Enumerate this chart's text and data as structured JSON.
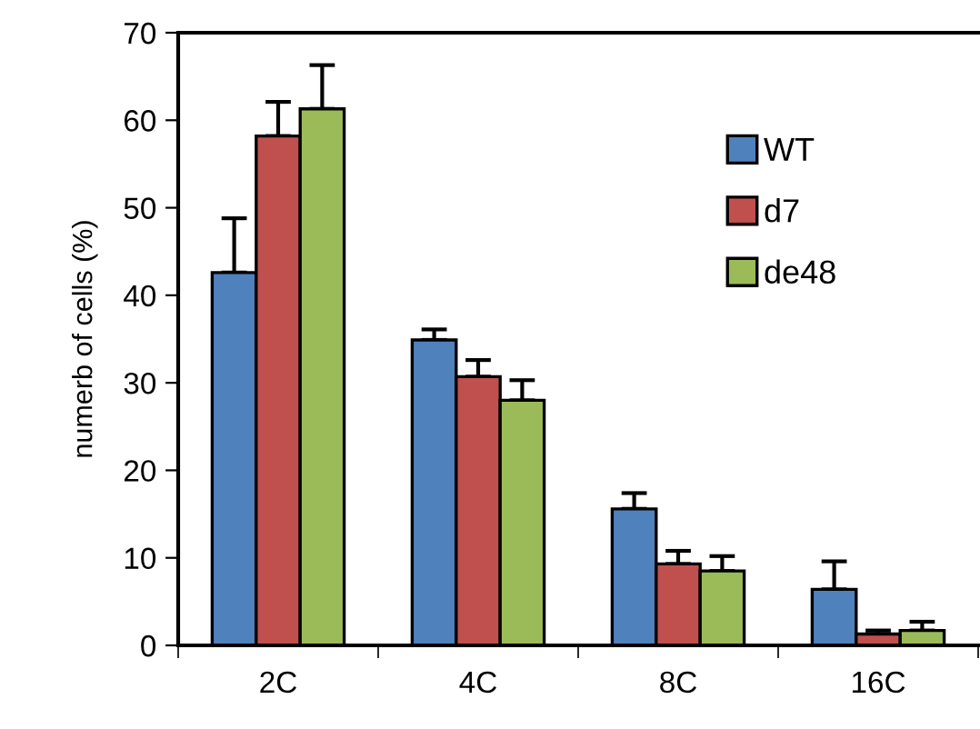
{
  "chart_data": {
    "type": "bar",
    "ylabel": "numerb of cells (%)",
    "categories": [
      "2C",
      "4C",
      "8C",
      "16C"
    ],
    "series": [
      {
        "name": "WT",
        "color": "#4f81bd",
        "values": [
          42.6,
          34.9,
          15.6,
          6.4
        ],
        "errors": [
          [
            42.6,
            48.8
          ],
          [
            34.9,
            36.1
          ],
          [
            15.6,
            17.4
          ],
          [
            6.4,
            9.6
          ]
        ]
      },
      {
        "name": "d7",
        "color": "#c0504d",
        "values": [
          58.2,
          30.7,
          9.3,
          1.3
        ],
        "errors": [
          [
            58.2,
            62.1
          ],
          [
            30.7,
            32.6
          ],
          [
            9.3,
            10.8
          ],
          [
            1.3,
            1.7
          ]
        ]
      },
      {
        "name": "de48",
        "color": "#9bbb59",
        "values": [
          61.3,
          28.0,
          8.5,
          1.7
        ],
        "errors": [
          [
            61.3,
            66.3
          ],
          [
            28.0,
            30.3
          ],
          [
            8.5,
            10.2
          ],
          [
            1.7,
            2.7
          ]
        ]
      }
    ],
    "ylim": [
      0,
      70
    ],
    "yticks": [
      0,
      10,
      20,
      30,
      40,
      50,
      60,
      70
    ],
    "grid": false,
    "legend": "top right"
  }
}
